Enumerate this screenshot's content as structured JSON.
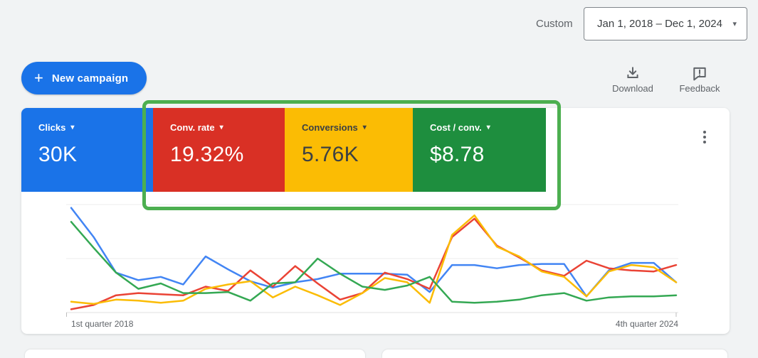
{
  "header": {
    "range_type_label": "Custom",
    "date_range": "Jan 1, 2018 – Dec 1, 2024",
    "caret": "▾"
  },
  "toolbar": {
    "new_campaign_label": "New campaign",
    "plus_glyph": "+",
    "download_label": "Download",
    "feedback_label": "Feedback"
  },
  "scorecards": [
    {
      "label": "Clicks",
      "value": "30K",
      "caret": "▾",
      "bg": "#1a73e8",
      "text": "#ffffff"
    },
    {
      "label": "Conv. rate",
      "value": "19.32%",
      "caret": "▾",
      "bg": "#d93025",
      "text": "#ffffff"
    },
    {
      "label": "Conversions",
      "value": "5.76K",
      "caret": "▾",
      "bg": "#fbbc04",
      "text": "#3c4043"
    },
    {
      "label": "Cost / conv.",
      "value": "$8.78",
      "caret": "▾",
      "bg": "#1e8e3e",
      "text": "#ffffff"
    }
  ],
  "annotation": {
    "color": "#4caf50",
    "highlights": [
      "Conv. rate",
      "Conversions",
      "Cost / conv."
    ]
  },
  "axis": {
    "start_label": "1st quarter 2018",
    "end_label": "4th quarter 2024"
  },
  "chart_data": {
    "type": "line",
    "title": "",
    "xlabel": "quarter",
    "ylabel": "",
    "x_start_label": "1st quarter 2018",
    "x_end_label": "4th quarter 2024",
    "grid": true,
    "legend_position": "scorecards-above-chart",
    "ylim": [
      0,
      100
    ],
    "y_scale_note": "normalized 0-100 estimate read from pixels; chart shows no y-axis labels",
    "categories": [
      "Q1 2018",
      "Q2 2018",
      "Q3 2018",
      "Q4 2018",
      "Q1 2019",
      "Q2 2019",
      "Q3 2019",
      "Q4 2019",
      "Q1 2020",
      "Q2 2020",
      "Q3 2020",
      "Q4 2020",
      "Q1 2021",
      "Q2 2021",
      "Q3 2021",
      "Q4 2021",
      "Q1 2022",
      "Q2 2022",
      "Q3 2022",
      "Q4 2022",
      "Q1 2023",
      "Q2 2023",
      "Q3 2023",
      "Q4 2023",
      "Q1 2024",
      "Q2 2024",
      "Q3 2024",
      "Q4 2024"
    ],
    "series": [
      {
        "name": "Clicks",
        "color": "#4285f4",
        "values": [
          97,
          70,
          37,
          30,
          33,
          26,
          52,
          40,
          29,
          23,
          28,
          31,
          36,
          36,
          36,
          35,
          19,
          44,
          44,
          41,
          44,
          45,
          45,
          15,
          39,
          46,
          46,
          28
        ]
      },
      {
        "name": "Conv. rate",
        "color": "#ea4335",
        "values": [
          3,
          7,
          16,
          18,
          17,
          16,
          24,
          20,
          39,
          24,
          43,
          27,
          12,
          18,
          37,
          31,
          22,
          70,
          87,
          62,
          51,
          39,
          34,
          48,
          41,
          39,
          38,
          44
        ]
      },
      {
        "name": "Conversions",
        "color": "#fbbc04",
        "values": [
          10,
          8,
          12,
          11,
          9,
          11,
          22,
          26,
          29,
          14,
          24,
          16,
          7,
          18,
          32,
          28,
          9,
          72,
          90,
          61,
          52,
          38,
          33,
          15,
          38,
          44,
          42,
          28
        ]
      },
      {
        "name": "Cost / conv.",
        "color": "#34a853",
        "values": [
          84,
          60,
          37,
          22,
          27,
          18,
          18,
          19,
          11,
          27,
          28,
          50,
          36,
          24,
          21,
          25,
          33,
          10,
          9,
          10,
          12,
          16,
          18,
          11,
          14,
          15,
          15,
          16
        ]
      }
    ]
  }
}
